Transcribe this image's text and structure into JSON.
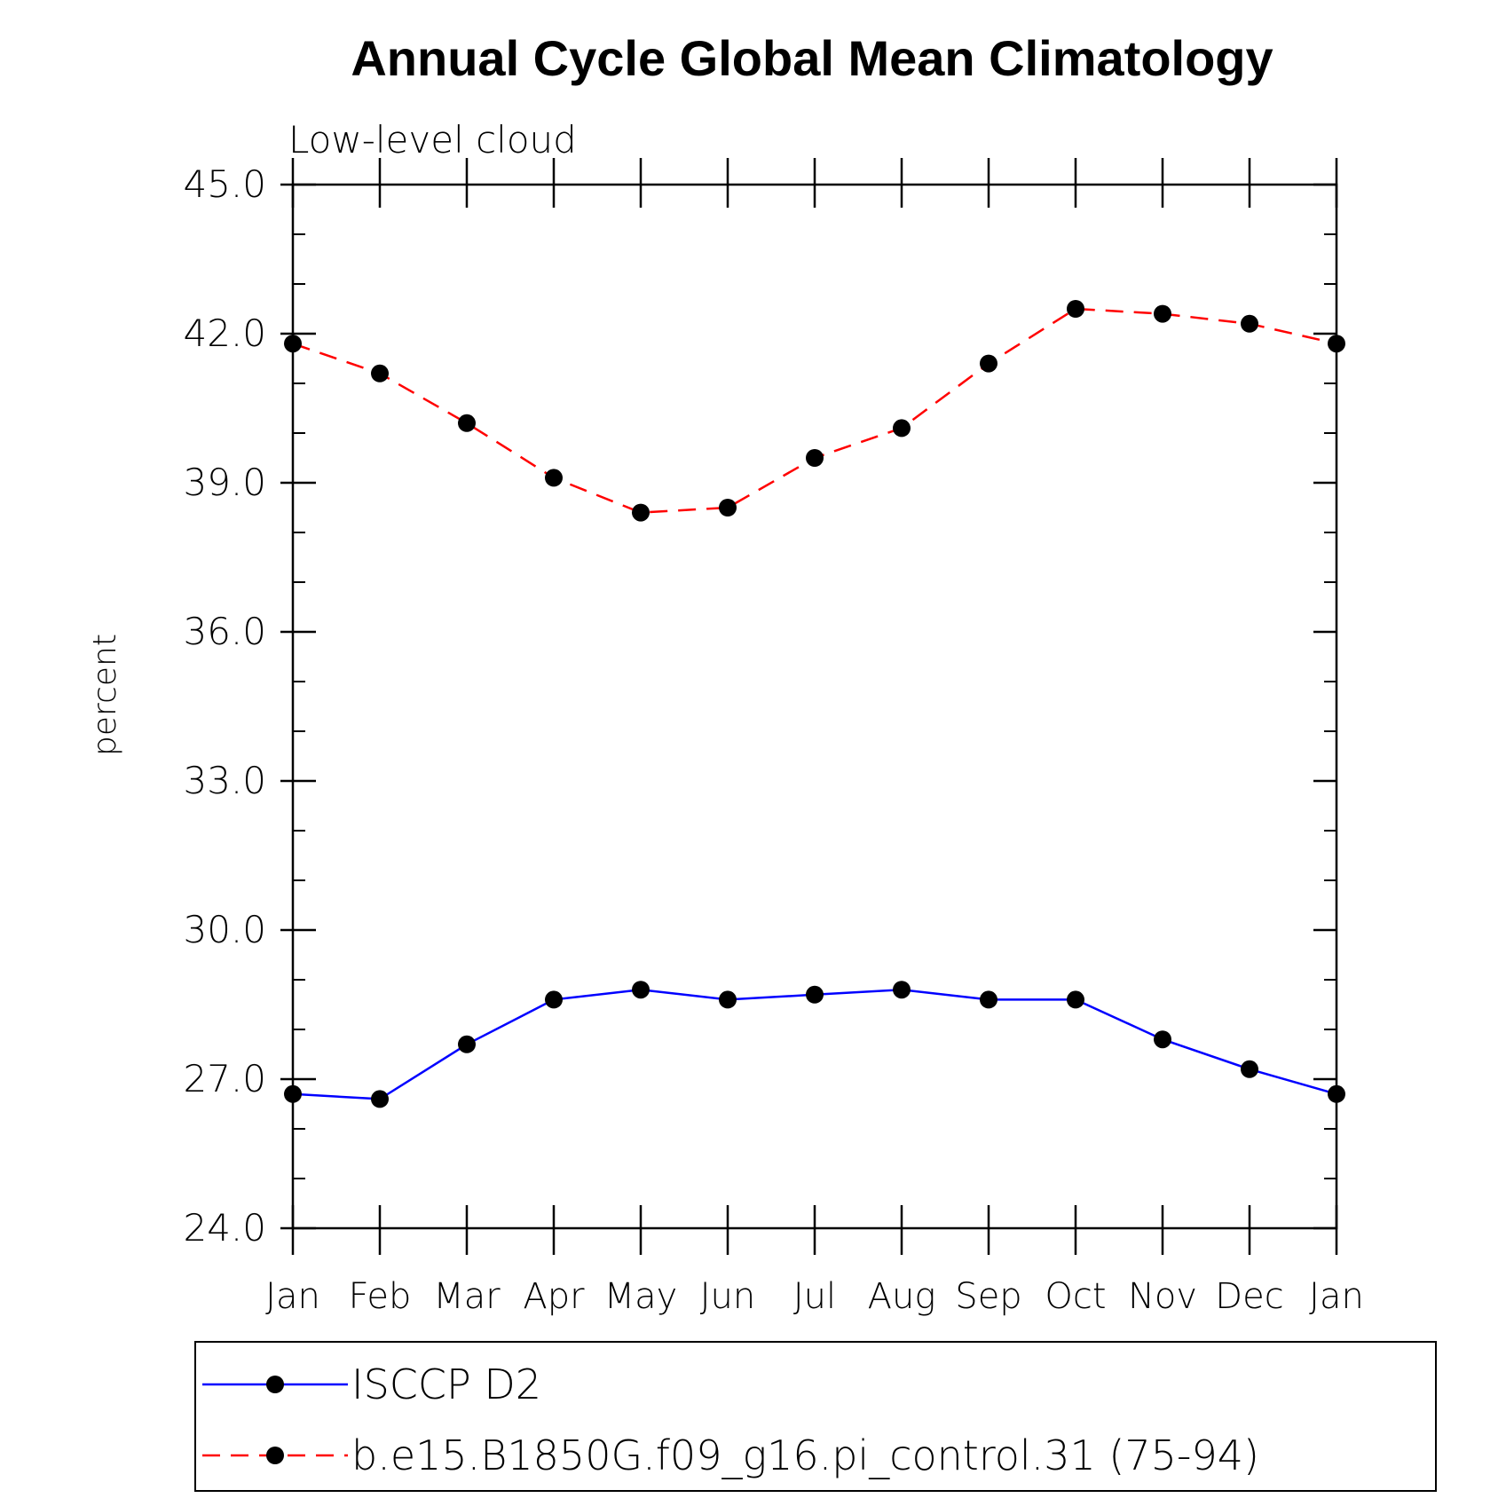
{
  "chart_data": {
    "type": "line",
    "title": "Annual Cycle Global Mean Climatology",
    "subtitle": "Low-level cloud",
    "xlabel": "",
    "ylabel": "percent",
    "ylim": [
      24.0,
      45.0
    ],
    "yticks": [
      "24.0",
      "27.0",
      "30.0",
      "33.0",
      "36.0",
      "39.0",
      "42.0",
      "45.0"
    ],
    "categories": [
      "Jan",
      "Feb",
      "Mar",
      "Apr",
      "May",
      "Jun",
      "Jul",
      "Aug",
      "Sep",
      "Oct",
      "Nov",
      "Dec",
      "Jan"
    ],
    "grid": false,
    "legend_position": "bottom",
    "series": [
      {
        "name": "ISCCP D2",
        "color": "#0000ff",
        "dash": "solid",
        "marker": "filled-circle",
        "values": [
          26.7,
          26.6,
          27.7,
          28.6,
          28.8,
          28.6,
          28.7,
          28.8,
          28.6,
          28.6,
          27.8,
          27.2,
          26.7
        ]
      },
      {
        "name": "b.e15.B1850G.f09_g16.pi_control.31 (75-94)",
        "color": "#ff0000",
        "dash": "dashed",
        "marker": "filled-circle",
        "values": [
          41.8,
          41.2,
          40.2,
          39.1,
          38.4,
          38.5,
          39.5,
          40.1,
          41.4,
          42.5,
          42.4,
          42.2,
          41.8
        ]
      }
    ]
  }
}
